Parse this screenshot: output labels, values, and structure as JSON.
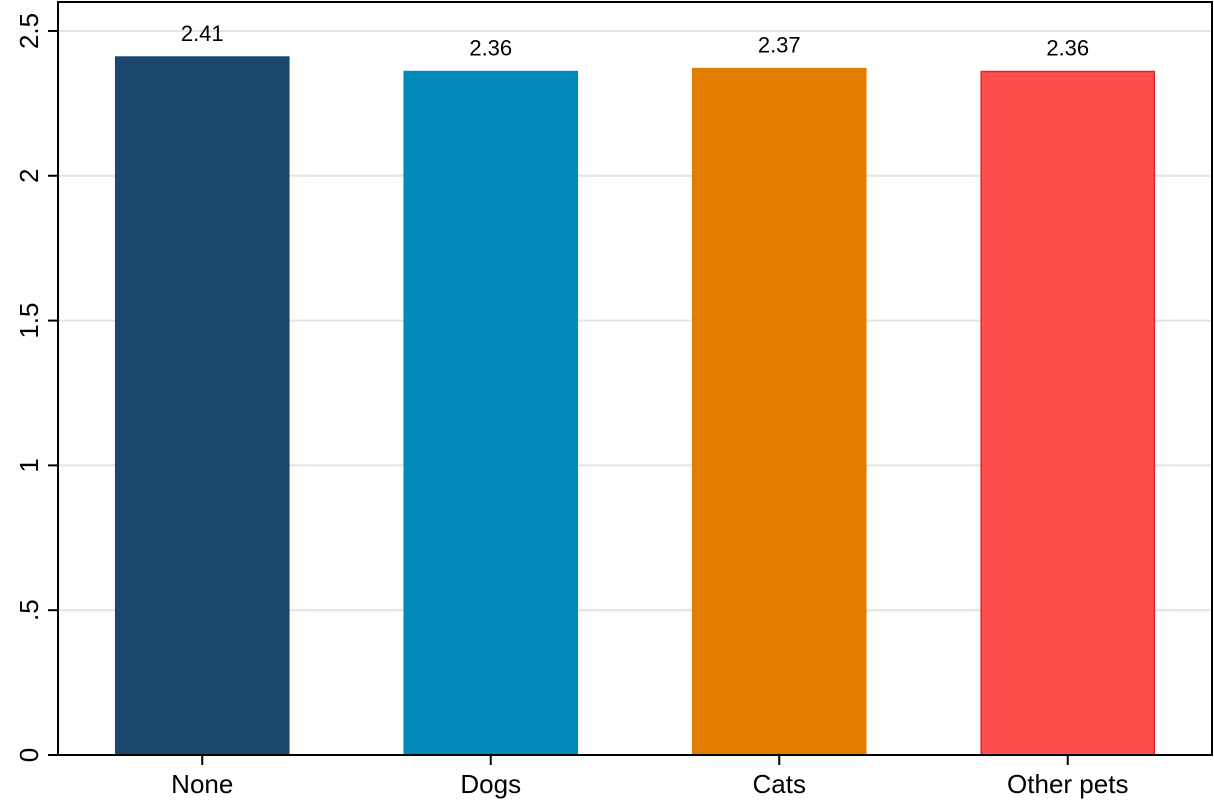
{
  "chart_data": {
    "type": "bar",
    "title": "",
    "xlabel": "",
    "ylabel": "",
    "categories": [
      "None",
      "Dogs",
      "Cats",
      "Other pets"
    ],
    "values": [
      2.41,
      2.36,
      2.37,
      2.36
    ],
    "value_labels": [
      "2.41",
      "2.36",
      "2.37",
      "2.36"
    ],
    "colors": [
      "#1b476e",
      "#038bbc",
      "#e27d00",
      "#ff4e4e"
    ],
    "bar_outline_colors": [
      "#1b476e",
      "#038bbc",
      "#e27d00",
      "#e5222a"
    ],
    "ylim": [
      0,
      2.6
    ],
    "yticks": [
      0,
      0.5,
      1,
      1.5,
      2,
      2.5
    ],
    "ytick_labels": [
      "0",
      ".5",
      "1",
      "1.5",
      "2",
      "2.5"
    ],
    "grid": true,
    "legend": "none"
  }
}
